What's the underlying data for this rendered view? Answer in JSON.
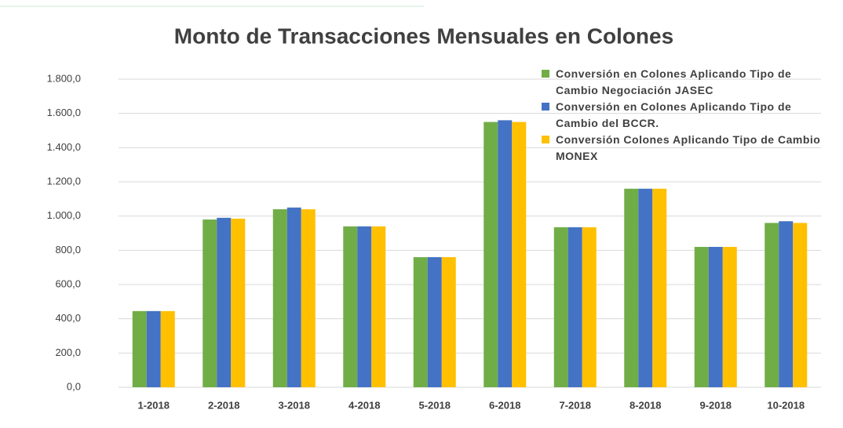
{
  "chart_data": {
    "type": "bar",
    "title": "Monto de Transacciones Mensuales en Colones",
    "categories": [
      "1-2018",
      "2-2018",
      "3-2018",
      "4-2018",
      "5-2018",
      "6-2018",
      "7-2018",
      "8-2018",
      "9-2018",
      "10-2018"
    ],
    "series": [
      {
        "name": "Conversión en Colones Aplicando Tipo de Cambio Negociación JASEC",
        "color": "#70ad47",
        "values": [
          445,
          980,
          1040,
          940,
          760,
          1550,
          935,
          1160,
          820,
          960
        ]
      },
      {
        "name": "Conversión en Colones Aplicando Tipo de Cambio del BCCR.",
        "color": "#4472c4",
        "values": [
          445,
          990,
          1050,
          940,
          760,
          1560,
          935,
          1160,
          820,
          970
        ]
      },
      {
        "name": "Conversión Colones Aplicando Tipo de Cambio MONEX",
        "color": "#ffc000",
        "values": [
          445,
          985,
          1040,
          940,
          760,
          1550,
          935,
          1160,
          820,
          960
        ]
      }
    ],
    "ylim": [
      0,
      1800
    ],
    "yticks": [
      {
        "value": 0,
        "label": "0,0"
      },
      {
        "value": 200,
        "label": "200,0"
      },
      {
        "value": 400,
        "label": "400,0"
      },
      {
        "value": 600,
        "label": "600,0"
      },
      {
        "value": 800,
        "label": "800,0"
      },
      {
        "value": 1000,
        "label": "1.000,0"
      },
      {
        "value": 1200,
        "label": "1.200,0"
      },
      {
        "value": 1400,
        "label": "1.400,0"
      },
      {
        "value": 1600,
        "label": "1.600,0"
      },
      {
        "value": 1800,
        "label": "1.800,0"
      }
    ],
    "grid": true,
    "legend": "top-right"
  }
}
